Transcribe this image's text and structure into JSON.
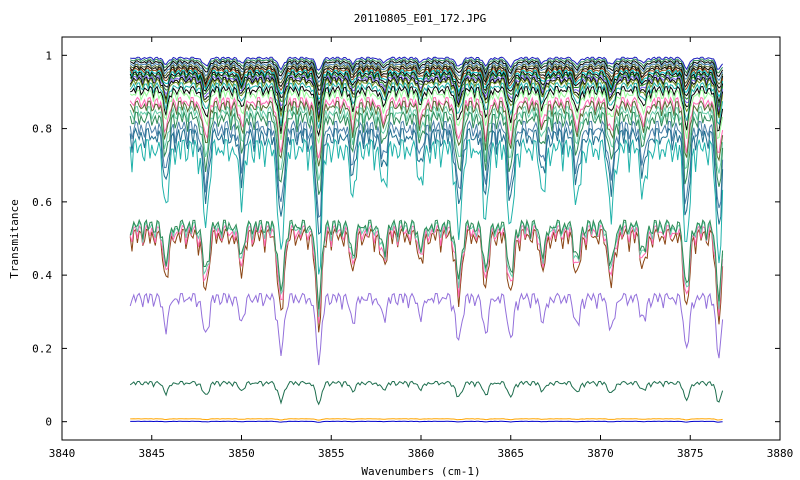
{
  "chart_data": {
    "type": "line",
    "title": "20110805_E01_172.JPG",
    "xlabel": "Wavenumbers (cm-1)",
    "ylabel": "Transmitance",
    "xlim": [
      3840,
      3880
    ],
    "ylim": [
      -0.05,
      1.05
    ],
    "xticks": [
      3840,
      3845,
      3850,
      3855,
      3860,
      3865,
      3870,
      3875,
      3880
    ],
    "xtick_labels": [
      "3840",
      "3845",
      "3850",
      "3855",
      "3860",
      "3865",
      "3870",
      "3875",
      "3880"
    ],
    "yticks": [
      0,
      0.2,
      0.4,
      0.6,
      0.8,
      1
    ],
    "ytick_labels": [
      "0",
      "0.2",
      "0.4",
      "0.6",
      "0.8",
      "1"
    ],
    "grid": false,
    "legend": "none",
    "x_range_data": [
      3843.8,
      3876.8
    ],
    "absorption_lines": [
      {
        "x": 3845.8,
        "depth": 0.5
      },
      {
        "x": 3848.0,
        "depth": 0.7
      },
      {
        "x": 3850.0,
        "depth": 0.4
      },
      {
        "x": 3852.2,
        "depth": 1.0
      },
      {
        "x": 3854.3,
        "depth": 1.1
      },
      {
        "x": 3856.2,
        "depth": 0.4
      },
      {
        "x": 3857.9,
        "depth": 0.35
      },
      {
        "x": 3860.0,
        "depth": 0.3
      },
      {
        "x": 3862.1,
        "depth": 0.8
      },
      {
        "x": 3863.6,
        "depth": 0.6
      },
      {
        "x": 3865.0,
        "depth": 0.75
      },
      {
        "x": 3866.8,
        "depth": 0.4
      },
      {
        "x": 3868.7,
        "depth": 0.5
      },
      {
        "x": 3870.6,
        "depth": 0.6
      },
      {
        "x": 3872.4,
        "depth": 0.4
      },
      {
        "x": 3874.8,
        "depth": 0.9
      },
      {
        "x": 3876.6,
        "depth": 1.0
      }
    ],
    "series": [
      {
        "color": "#1f1fbf",
        "base": 0.995,
        "depth": 0.03
      },
      {
        "color": "#2e8b57",
        "base": 0.99,
        "depth": 0.035
      },
      {
        "color": "#000000",
        "base": 0.985,
        "depth": 0.04
      },
      {
        "color": "#4682b4",
        "base": 0.98,
        "depth": 0.045
      },
      {
        "color": "#556b2f",
        "base": 0.975,
        "depth": 0.05
      },
      {
        "color": "#000000",
        "base": 0.97,
        "depth": 0.055
      },
      {
        "color": "#8b4513",
        "base": 0.965,
        "depth": 0.06
      },
      {
        "color": "#00bfbf",
        "base": 0.96,
        "depth": 0.065
      },
      {
        "color": "#000000",
        "base": 0.955,
        "depth": 0.07
      },
      {
        "color": "#228b22",
        "base": 0.95,
        "depth": 0.075
      },
      {
        "color": "#7b68ee",
        "base": 0.945,
        "depth": 0.08
      },
      {
        "color": "#000000",
        "base": 0.94,
        "depth": 0.085
      },
      {
        "color": "#6b8e23",
        "base": 0.935,
        "depth": 0.09
      },
      {
        "color": "#20b2aa",
        "base": 0.925,
        "depth": 0.1
      },
      {
        "color": "#000000",
        "base": 0.915,
        "depth": 0.11
      },
      {
        "color": "#98fb98",
        "base": 0.905,
        "depth": 0.12
      },
      {
        "color": "#ff69b4",
        "base": 0.885,
        "depth": 0.14
      },
      {
        "color": "#556b2f",
        "base": 0.875,
        "depth": 0.15
      },
      {
        "color": "#66cdaa",
        "base": 0.86,
        "depth": 0.17
      },
      {
        "color": "#2e8b57",
        "base": 0.845,
        "depth": 0.19
      },
      {
        "color": "#4a7fa8",
        "base": 0.82,
        "depth": 0.22
      },
      {
        "color": "#1e6e8e",
        "base": 0.8,
        "depth": 0.24
      },
      {
        "color": "#20b2aa",
        "base": 0.77,
        "depth": 0.3
      },
      {
        "color": "#8b4513",
        "base": 0.525,
        "depth": 0.22
      },
      {
        "color": "#ff69b4",
        "base": 0.535,
        "depth": 0.2
      },
      {
        "color": "#66cdaa",
        "base": 0.545,
        "depth": 0.19
      },
      {
        "color": "#2e8b57",
        "base": 0.55,
        "depth": 0.18
      },
      {
        "color": "#9370db",
        "base": 0.35,
        "depth": 0.15
      },
      {
        "color": "#1e6e4e",
        "base": 0.11,
        "depth": 0.05
      },
      {
        "color": "#ffa500",
        "base": 0.008,
        "depth": 0.003
      },
      {
        "color": "#0000cd",
        "base": 0.001,
        "depth": 0.002
      }
    ]
  }
}
